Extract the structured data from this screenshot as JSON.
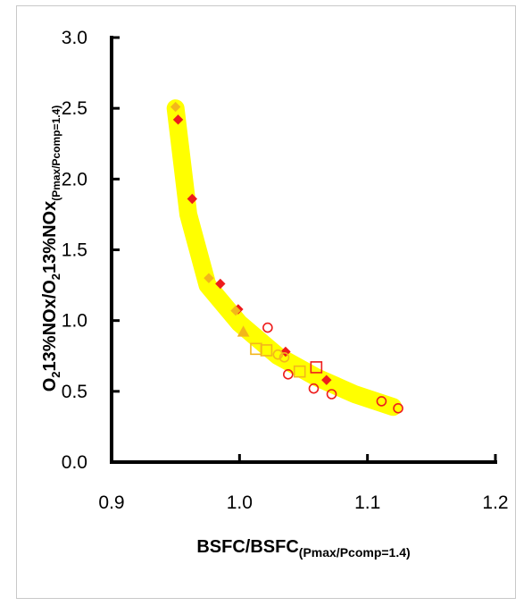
{
  "chart_data": {
    "type": "scatter",
    "xlabel": "BSFC/BSFC",
    "xlabel_sub": "(Pmax/Pcomp=1.4)",
    "ylabel_parts": [
      "O",
      "2",
      "13%NOx/O",
      "2",
      "13%NOx",
      "(Pmax/Pcomp=1.4)"
    ],
    "xlim": [
      0.9,
      1.2
    ],
    "ylim": [
      0.0,
      3.0
    ],
    "x_ticks": [
      "0.9",
      "1.0",
      "1.1",
      "1.2"
    ],
    "y_ticks": [
      "0.0",
      "0.5",
      "1.0",
      "1.5",
      "2.0",
      "2.5",
      "3.0"
    ],
    "grid": false,
    "band_color": "#ffff00",
    "band_trend": [
      [
        0.95,
        2.5
      ],
      [
        0.96,
        1.75
      ],
      [
        0.975,
        1.25
      ],
      [
        1.0,
        0.98
      ],
      [
        1.03,
        0.75
      ],
      [
        1.06,
        0.6
      ],
      [
        1.09,
        0.48
      ],
      [
        1.12,
        0.39
      ]
    ],
    "series": [
      {
        "marker": "diamond",
        "color": "#ee1c1c",
        "filled": true,
        "points": [
          [
            0.952,
            2.42
          ],
          [
            0.963,
            1.86
          ],
          [
            0.985,
            1.26
          ],
          [
            0.999,
            1.08
          ],
          [
            1.036,
            0.78
          ],
          [
            1.068,
            0.58
          ]
        ]
      },
      {
        "marker": "diamond",
        "color": "#f3b61b",
        "filled": true,
        "points": [
          [
            0.95,
            2.51
          ],
          [
            0.976,
            1.3
          ],
          [
            0.997,
            1.07
          ]
        ]
      },
      {
        "marker": "triangle",
        "color": "#f3b61b",
        "filled": true,
        "points": [
          [
            1.003,
            0.92
          ]
        ]
      },
      {
        "marker": "circle",
        "color": "#ee1c1c",
        "filled": false,
        "points": [
          [
            1.022,
            0.95
          ],
          [
            1.038,
            0.62
          ],
          [
            1.058,
            0.52
          ],
          [
            1.072,
            0.48
          ],
          [
            1.111,
            0.43
          ],
          [
            1.124,
            0.38
          ]
        ]
      },
      {
        "marker": "square",
        "color": "#ee1c1c",
        "filled": false,
        "points": [
          [
            1.06,
            0.67
          ]
        ]
      },
      {
        "marker": "square",
        "color": "#f3b61b",
        "filled": false,
        "points": [
          [
            1.013,
            0.8
          ],
          [
            1.021,
            0.79
          ],
          [
            1.047,
            0.64
          ]
        ]
      },
      {
        "marker": "circle",
        "color": "#f3b61b",
        "filled": false,
        "points": [
          [
            1.03,
            0.76
          ],
          [
            1.035,
            0.74
          ]
        ]
      }
    ]
  }
}
